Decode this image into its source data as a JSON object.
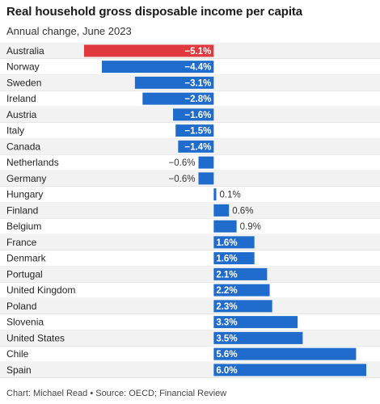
{
  "title": "Real household gross disposable income per capita",
  "subtitle": "Annual change, June 2023",
  "footer": "Chart: Michael Read • Source: OECD; Financial Review",
  "colors": {
    "negative": "#e0393e",
    "positive": "#1f6ccc",
    "label_inside": "#ffffff",
    "label_outside": "#333333",
    "category_text": "#222222",
    "zebra": "#f2f2f2",
    "separator": "#d6d6d6"
  },
  "chart_data": {
    "type": "bar",
    "orientation": "horizontal",
    "categories": [
      "Australia",
      "Norway",
      "Sweden",
      "Ireland",
      "Austria",
      "Italy",
      "Canada",
      "Netherlands",
      "Germany",
      "Hungary",
      "Finland",
      "Belgium",
      "France",
      "Denmark",
      "Portugal",
      "United Kingdom",
      "Poland",
      "Slovenia",
      "United States",
      "Chile",
      "Spain"
    ],
    "values": [
      -5.1,
      -4.4,
      -3.1,
      -2.8,
      -1.6,
      -1.5,
      -1.4,
      -0.6,
      -0.6,
      0.1,
      0.6,
      0.9,
      1.6,
      1.6,
      2.1,
      2.2,
      2.3,
      3.3,
      3.5,
      5.6,
      6.0
    ],
    "labels": [
      "−5.1%",
      "−4.4%",
      "−3.1%",
      "−2.8%",
      "−1.6%",
      "−1.5%",
      "−1.4%",
      "−0.6%",
      "−0.6%",
      "0.1%",
      "0.6%",
      "0.9%",
      "1.6%",
      "1.6%",
      "2.1%",
      "2.2%",
      "2.3%",
      "3.3%",
      "3.5%",
      "5.6%",
      "6.0%"
    ],
    "highlight": "Australia",
    "xlim": [
      -5.1,
      6.0
    ],
    "unit": "%",
    "grid": false
  }
}
